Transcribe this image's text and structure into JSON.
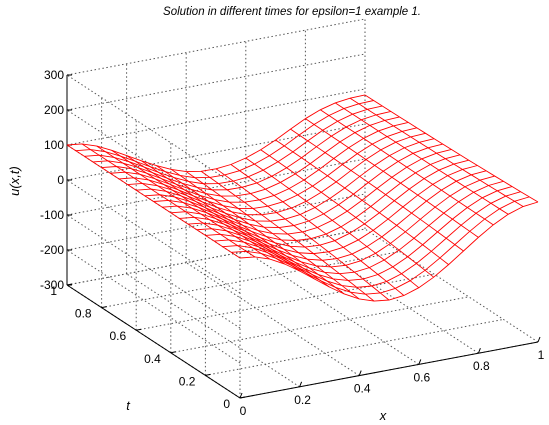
{
  "chart_data": {
    "type": "surface",
    "title": "Solution in different times for epsilon=1 example 1.",
    "xlabel": "x",
    "ylabel": "t",
    "zlabel": "u(x,t)",
    "xlim": [
      0,
      1
    ],
    "ylim": [
      0,
      1
    ],
    "zlim": [
      -300,
      300
    ],
    "x_ticks": [
      "0",
      "0.2",
      "0.4",
      "0.6",
      "0.8",
      "1"
    ],
    "y_ticks": [
      "0",
      "0.2",
      "0.4",
      "0.6",
      "0.8",
      "1"
    ],
    "z_ticks": [
      "300",
      "200",
      "100",
      "0",
      "-100",
      "-200",
      "-300"
    ],
    "grid": true,
    "mesh_color": "#ff0000",
    "x": [
      0,
      0.05,
      0.1,
      0.15,
      0.2,
      0.25,
      0.3,
      0.35,
      0.4,
      0.45,
      0.5,
      0.55,
      0.6,
      0.65,
      0.7,
      0.75,
      0.8,
      0.85,
      0.9,
      0.95,
      1
    ],
    "t": [
      0,
      0.05,
      0.1,
      0.15,
      0.2,
      0.25,
      0.3,
      0.35,
      0.4,
      0.45,
      0.5,
      0.55,
      0.6,
      0.65,
      0.7,
      0.75,
      0.8,
      0.85,
      0.9,
      0.95,
      1
    ],
    "u_rows": [
      [
        100,
        95.1,
        80.9,
        58.8,
        30.9,
        0,
        -30.9,
        -58.8,
        -80.9,
        -95.1,
        -100,
        -95.1,
        -80.9,
        -58.8,
        -30.9,
        0,
        30.9,
        58.8,
        80.9,
        95.1,
        100
      ],
      [
        100,
        95.1,
        80.9,
        58.9,
        31.4,
        1.0,
        -29.2,
        -56.4,
        -77.9,
        -91.5,
        -96.1,
        -91.1,
        -77.0,
        -55.3,
        -28.0,
        2.1,
        32.1,
        59.1,
        80.4,
        93.9,
        98.5
      ],
      [
        100,
        95.1,
        80.9,
        59.1,
        31.8,
        2.0,
        -27.5,
        -54.1,
        -75.0,
        -88.0,
        -92.3,
        -87.3,
        -73.3,
        -52.0,
        -25.2,
        4.2,
        33.4,
        59.5,
        80.0,
        92.7,
        97.1
      ],
      [
        100,
        95.1,
        80.9,
        59.2,
        32.3,
        2.9,
        -25.9,
        -51.8,
        -72.2,
        -84.6,
        -88.6,
        -83.6,
        -69.8,
        -48.9,
        -22.6,
        6.2,
        34.6,
        59.9,
        79.6,
        91.6,
        95.8
      ],
      [
        100,
        95.1,
        80.9,
        59.3,
        32.7,
        3.8,
        -24.4,
        -49.7,
        -69.5,
        -81.4,
        -85.1,
        -80.1,
        -66.4,
        -45.9,
        -20.2,
        8.1,
        35.7,
        60.3,
        79.2,
        90.6,
        94.6
      ],
      [
        100,
        95.1,
        80.9,
        59.4,
        33.1,
        4.7,
        -22.9,
        -47.6,
        -66.9,
        -78.3,
        -81.7,
        -76.7,
        -63.3,
        -43.1,
        -17.9,
        9.8,
        36.8,
        60.6,
        78.9,
        89.7,
        93.4
      ],
      [
        100,
        95.1,
        80.9,
        59.5,
        33.6,
        5.6,
        -21.4,
        -45.6,
        -64.4,
        -75.3,
        -78.5,
        -73.6,
        -60.2,
        -40.5,
        -15.7,
        11.5,
        37.9,
        61.0,
        78.6,
        88.8,
        92.3
      ],
      [
        100,
        95.1,
        80.9,
        59.6,
        34.0,
        6.4,
        -20.0,
        -43.7,
        -62.0,
        -72.5,
        -75.4,
        -70.5,
        -57.4,
        -38.0,
        -13.7,
        13.0,
        38.8,
        61.3,
        78.4,
        88.0,
        91.3
      ],
      [
        100,
        95.1,
        80.9,
        59.7,
        34.3,
        7.3,
        -18.7,
        -41.9,
        -59.8,
        -69.8,
        -72.5,
        -67.6,
        -54.7,
        -35.7,
        -11.8,
        14.5,
        39.7,
        61.7,
        78.1,
        87.2,
        90.3
      ],
      [
        100,
        95.1,
        80.9,
        59.8,
        34.7,
        8.0,
        -17.4,
        -40.2,
        -57.6,
        -67.3,
        -69.7,
        -64.9,
        -52.2,
        -33.5,
        -10.1,
        15.8,
        40.6,
        62.0,
        77.9,
        86.5,
        89.4
      ],
      [
        100,
        95.1,
        80.9,
        59.9,
        35.1,
        8.8,
        -16.2,
        -38.5,
        -55.6,
        -64.9,
        -67.1,
        -62.3,
        -49.8,
        -31.4,
        -8.5,
        17.1,
        41.4,
        62.3,
        77.7,
        85.9,
        88.6
      ],
      [
        100,
        95.1,
        80.9,
        60.0,
        35.4,
        9.5,
        -15.1,
        -36.9,
        -53.6,
        -62.6,
        -64.7,
        -59.9,
        -47.6,
        -29.5,
        -7.0,
        18.2,
        42.2,
        62.6,
        77.5,
        85.3,
        87.8
      ],
      [
        100,
        95.1,
        80.9,
        60.1,
        35.7,
        10.2,
        -14.0,
        -35.4,
        -51.8,
        -60.5,
        -62.3,
        -57.6,
        -45.5,
        -27.8,
        -5.6,
        19.3,
        42.9,
        62.8,
        77.3,
        84.7,
        87.1
      ],
      [
        100,
        95.1,
        80.9,
        60.2,
        36.0,
        10.8,
        -12.9,
        -34.0,
        -50.0,
        -58.4,
        -60.1,
        -55.4,
        -43.6,
        -26.1,
        -4.3,
        20.3,
        43.6,
        63.1,
        77.1,
        84.2,
        86.4
      ],
      [
        100,
        95.1,
        80.9,
        60.2,
        36.4,
        11.4,
        -11.9,
        -32.6,
        -48.3,
        -56.5,
        -58.1,
        -53.4,
        -41.7,
        -24.6,
        -3.1,
        21.2,
        44.2,
        63.4,
        76.9,
        83.7,
        85.8
      ],
      [
        100,
        95.1,
        80.9,
        60.3,
        36.6,
        12.1,
        -11.0,
        -31.3,
        -46.7,
        -54.7,
        -56.1,
        -51.5,
        -40.0,
        -23.2,
        -2.0,
        22.1,
        44.8,
        63.6,
        76.8,
        83.3,
        85.2
      ],
      [
        100,
        95.1,
        80.9,
        60.4,
        36.9,
        12.6,
        -10.1,
        -30.1,
        -45.2,
        -53.0,
        -54.3,
        -49.7,
        -38.4,
        -21.9,
        -1.0,
        22.8,
        45.4,
        63.8,
        76.6,
        82.9,
        84.7
      ],
      [
        100,
        95.1,
        80.9,
        60.5,
        37.2,
        13.2,
        -9.2,
        -28.9,
        -43.8,
        -51.4,
        -52.5,
        -48.1,
        -37.0,
        -20.7,
        -0.1,
        23.6,
        45.9,
        64.0,
        76.5,
        82.5,
        84.2
      ],
      [
        100,
        95.1,
        80.9,
        60.6,
        37.5,
        13.7,
        -8.4,
        -27.8,
        -42.4,
        -49.8,
        -50.9,
        -46.5,
        -35.6,
        -19.6,
        0.8,
        24.2,
        46.4,
        64.2,
        76.4,
        82.2,
        83.7
      ],
      [
        100,
        95.1,
        80.9,
        60.6,
        37.7,
        14.3,
        -7.6,
        -26.8,
        -41.1,
        -48.4,
        -49.4,
        -45.1,
        -34.4,
        -18.6,
        1.5,
        24.8,
        46.8,
        64.4,
        76.3,
        81.9,
        83.3
      ],
      [
        100,
        95.1,
        80.9,
        60.7,
        37.9,
        14.8,
        -6.9,
        -25.8,
        -39.9,
        -47.1,
        -48.0,
        -43.7,
        -33.2,
        -17.7,
        2.2,
        25.3,
        47.2,
        64.6,
        76.2,
        81.6,
        82.9
      ]
    ]
  }
}
